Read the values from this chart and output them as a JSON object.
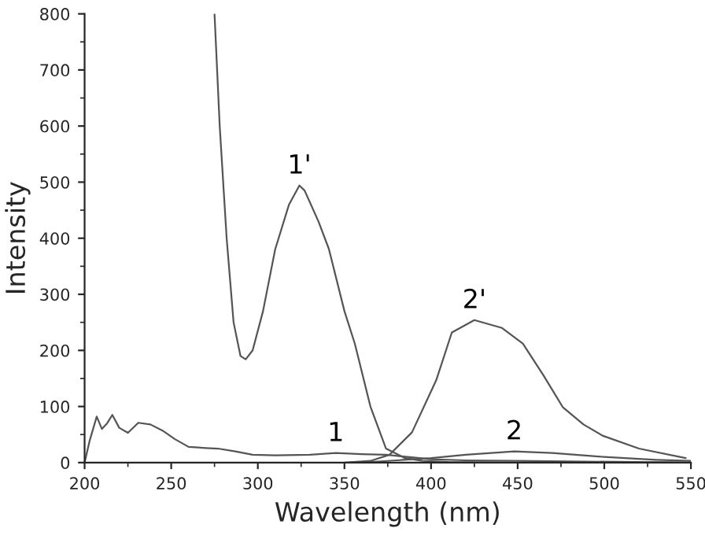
{
  "chart_data": {
    "type": "line",
    "xlabel": "Wavelength (nm)",
    "ylabel": "Intensity",
    "xlim": [
      200,
      550
    ],
    "ylim": [
      0,
      800
    ],
    "xticks": [
      200,
      250,
      300,
      350,
      400,
      450,
      500,
      550
    ],
    "yticks": [
      0,
      100,
      200,
      300,
      400,
      500,
      600,
      700,
      800
    ],
    "grid": false,
    "marker": "none",
    "line_style": "solid",
    "series": [
      {
        "name": "1",
        "color": "#555555",
        "x": [
          200,
          203,
          207,
          210,
          213,
          216,
          220,
          225,
          231,
          238,
          245,
          252,
          260,
          270,
          277,
          287,
          297,
          310,
          330,
          345,
          360,
          374,
          390,
          400,
          420,
          450,
          480,
          520,
          550
        ],
        "values": [
          0,
          40,
          82,
          60,
          70,
          85,
          62,
          53,
          71,
          68,
          57,
          42,
          28,
          26,
          25,
          20,
          14,
          13,
          14,
          17,
          15,
          14,
          9,
          6,
          4,
          3,
          2,
          1,
          0
        ]
      },
      {
        "name": "1'",
        "color": "#555555",
        "x": [
          275,
          278,
          282,
          286,
          290,
          293,
          297,
          303,
          310,
          318,
          324,
          327,
          335,
          341,
          350,
          356,
          365,
          374,
          385,
          395,
          410,
          450,
          550
        ],
        "values": [
          800,
          600,
          400,
          250,
          190,
          184,
          200,
          270,
          380,
          460,
          494,
          485,
          430,
          381,
          270,
          212,
          100,
          25,
          8,
          3,
          1,
          0,
          0
        ]
      },
      {
        "name": "2",
        "color": "#555555",
        "x": [
          360,
          380,
          400,
          420,
          448,
          470,
          500,
          530,
          550
        ],
        "values": [
          0,
          4,
          8,
          14,
          20,
          17,
          10,
          5,
          3
        ]
      },
      {
        "name": "2'",
        "color": "#555555",
        "x": [
          350,
          365,
          376,
          389,
          403,
          412,
          425,
          441,
          453,
          465,
          476,
          488,
          499,
          520,
          547
        ],
        "values": [
          0,
          3,
          14,
          54,
          147,
          232,
          254,
          240,
          212,
          155,
          99,
          68,
          48,
          25,
          8
        ]
      }
    ]
  }
}
